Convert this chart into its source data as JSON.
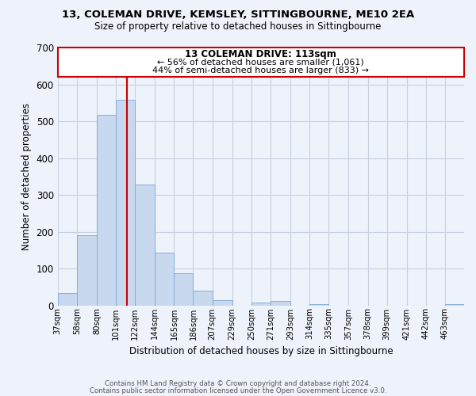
{
  "title": "13, COLEMAN DRIVE, KEMSLEY, SITTINGBOURNE, ME10 2EA",
  "subtitle": "Size of property relative to detached houses in Sittingbourne",
  "xlabel": "Distribution of detached houses by size in Sittingbourne",
  "ylabel": "Number of detached properties",
  "categories": [
    "37sqm",
    "58sqm",
    "80sqm",
    "101sqm",
    "122sqm",
    "144sqm",
    "165sqm",
    "186sqm",
    "207sqm",
    "229sqm",
    "250sqm",
    "271sqm",
    "293sqm",
    "314sqm",
    "335sqm",
    "357sqm",
    "378sqm",
    "399sqm",
    "421sqm",
    "442sqm",
    "463sqm"
  ],
  "values": [
    33,
    190,
    518,
    558,
    328,
    143,
    87,
    40,
    13,
    0,
    8,
    11,
    0,
    4,
    0,
    0,
    0,
    0,
    0,
    0,
    4
  ],
  "bar_color": "#c8d8ee",
  "bar_edge_color": "#7aa8d4",
  "background_color": "#eef2fa",
  "ylim": [
    0,
    700
  ],
  "yticks": [
    0,
    100,
    200,
    300,
    400,
    500,
    600,
    700
  ],
  "annotation_title": "13 COLEMAN DRIVE: 113sqm",
  "annotation_line1": "← 56% of detached houses are smaller (1,061)",
  "annotation_line2": "44% of semi-detached houses are larger (833) →",
  "property_sqm": 113,
  "footer_line1": "Contains HM Land Registry data © Crown copyright and database right 2024.",
  "footer_line2": "Contains public sector information licensed under the Open Government Licence v3.0.",
  "bin_edges": [
    37,
    58,
    80,
    101,
    122,
    144,
    165,
    186,
    207,
    229,
    250,
    271,
    293,
    314,
    335,
    357,
    378,
    399,
    421,
    442,
    463,
    484
  ],
  "grid_color": "#c8d0e0",
  "red_line_color": "#cc0000",
  "ann_box_edge_color": "#cc0000"
}
